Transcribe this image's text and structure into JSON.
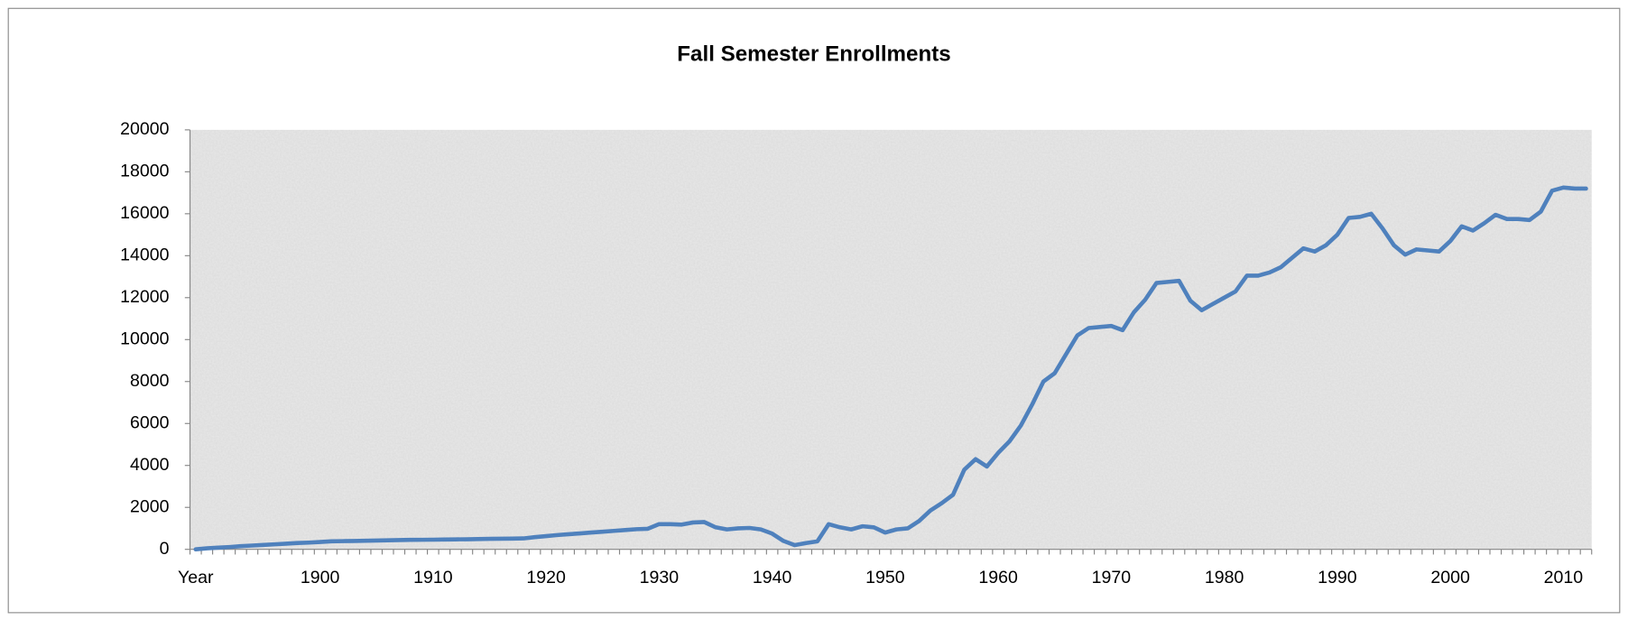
{
  "chart_data": {
    "type": "line",
    "title": "Fall Semester Enrollments",
    "categories": [
      "Year",
      null,
      null,
      null,
      null,
      null,
      null,
      null,
      null,
      null,
      null,
      "1900",
      null,
      null,
      null,
      null,
      null,
      null,
      null,
      null,
      null,
      "1910",
      null,
      null,
      null,
      null,
      null,
      null,
      null,
      null,
      null,
      "1920",
      null,
      null,
      null,
      null,
      null,
      null,
      null,
      null,
      null,
      "1930",
      null,
      null,
      null,
      null,
      null,
      null,
      null,
      null,
      null,
      "1940",
      null,
      null,
      null,
      null,
      null,
      null,
      null,
      null,
      null,
      "1950",
      null,
      null,
      null,
      null,
      null,
      null,
      null,
      null,
      null,
      "1960",
      null,
      null,
      null,
      null,
      null,
      null,
      null,
      null,
      null,
      "1970",
      null,
      null,
      null,
      null,
      null,
      null,
      null,
      null,
      null,
      "1980",
      null,
      null,
      null,
      null,
      null,
      null,
      null,
      null,
      null,
      "1990",
      null,
      null,
      null,
      null,
      null,
      null,
      null,
      null,
      null,
      "2000",
      null,
      null,
      null,
      null,
      null,
      null,
      null,
      null,
      null,
      "2010",
      null,
      null
    ],
    "values": [
      0,
      50,
      80,
      110,
      150,
      180,
      210,
      240,
      270,
      300,
      320,
      350,
      380,
      390,
      400,
      410,
      420,
      430,
      440,
      450,
      455,
      460,
      470,
      475,
      480,
      490,
      500,
      505,
      510,
      520,
      580,
      630,
      680,
      720,
      760,
      800,
      840,
      880,
      920,
      960,
      980,
      1200,
      1200,
      1180,
      1280,
      1300,
      1050,
      950,
      1000,
      1020,
      950,
      750,
      400,
      200,
      300,
      380,
      1200,
      1050,
      950,
      1100,
      1050,
      800,
      950,
      1000,
      1350,
      1850,
      2200,
      2600,
      3800,
      4300,
      3950,
      4600,
      5150,
      5900,
      6900,
      8000,
      8400,
      9300,
      10200,
      10550,
      10600,
      10650,
      10450,
      11300,
      11900,
      12700,
      12750,
      12800,
      11850,
      11400,
      11700,
      12000,
      12300,
      13050,
      13050,
      13200,
      13450,
      13900,
      14350,
      14200,
      14500,
      15000,
      15800,
      15850,
      16000,
      15300,
      14500,
      14050,
      14300,
      14250,
      14200,
      14700,
      15400,
      15200,
      15550,
      15950,
      15750,
      15750,
      15700,
      16100,
      17100,
      17250,
      17200,
      17200
    ],
    "color": "#4f81bd",
    "ylim": [
      0,
      20000
    ],
    "yticks": [
      0,
      2000,
      4000,
      6000,
      8000,
      10000,
      12000,
      14000,
      16000,
      18000,
      20000
    ]
  }
}
